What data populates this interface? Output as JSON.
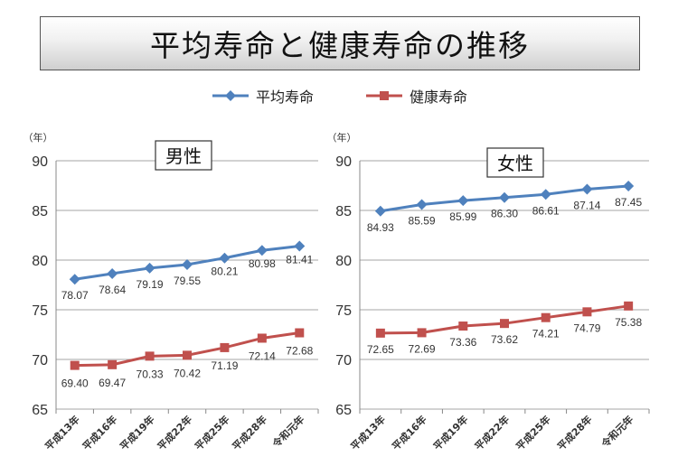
{
  "title": "平均寿命と健康寿命の推移",
  "legend": {
    "avg": "平均寿命",
    "healthy": "健康寿命"
  },
  "colors": {
    "avg": "#4F81BD",
    "healthy": "#C0504D"
  },
  "chart_data": [
    {
      "type": "line",
      "title": "男性",
      "yunit": "（年）",
      "ylim": [
        65,
        90
      ],
      "yticks": [
        65,
        70,
        75,
        80,
        85,
        90
      ],
      "grid": true,
      "categories": [
        "平成13年",
        "平成16年",
        "平成19年",
        "平成22年",
        "平成25年",
        "平成28年",
        "令和元年"
      ],
      "series": [
        {
          "name": "平均寿命",
          "values": [
            78.07,
            78.64,
            79.19,
            79.55,
            80.21,
            80.98,
            81.41
          ]
        },
        {
          "name": "健康寿命",
          "values": [
            69.4,
            69.47,
            70.33,
            70.42,
            71.19,
            72.14,
            72.68
          ]
        }
      ]
    },
    {
      "type": "line",
      "title": "女性",
      "yunit": "（年）",
      "ylim": [
        65,
        90
      ],
      "yticks": [
        65,
        70,
        75,
        80,
        85,
        90
      ],
      "grid": true,
      "categories": [
        "平成13年",
        "平成16年",
        "平成19年",
        "平成22年",
        "平成25年",
        "平成28年",
        "令和元年"
      ],
      "series": [
        {
          "name": "平均寿命",
          "values": [
            84.93,
            85.59,
            85.99,
            86.3,
            86.61,
            87.14,
            87.45
          ]
        },
        {
          "name": "健康寿命",
          "values": [
            72.65,
            72.69,
            73.36,
            73.62,
            74.21,
            74.79,
            75.38
          ]
        }
      ]
    }
  ]
}
